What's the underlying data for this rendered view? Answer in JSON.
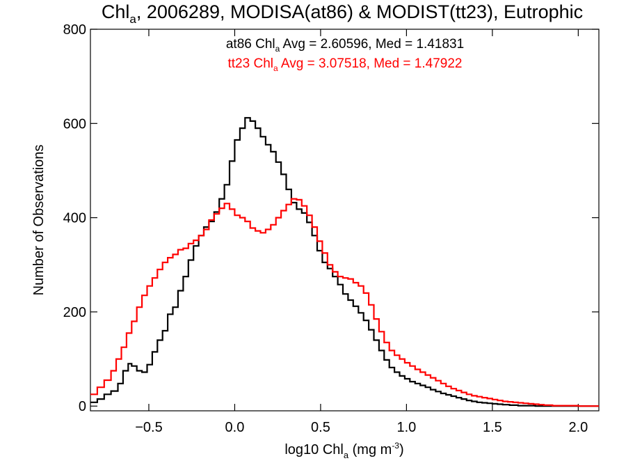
{
  "chart_data": {
    "type": "line",
    "title": {
      "prefix": "Chl",
      "sub": "a",
      "rest": ", 2006289, MODISA(at86) & MODIST(tt23), Eutrophic"
    },
    "xlabel": {
      "prefix": "log10 Chl",
      "sub": "a",
      "mid": " (mg m",
      "sup": "-3",
      "suffix": ")"
    },
    "ylabel": "Number of Observations",
    "xlim": [
      -0.84,
      2.12
    ],
    "ylim": [
      -10,
      800
    ],
    "x_ticks": [
      -0.5,
      0.0,
      0.5,
      1.0,
      1.5,
      2.0
    ],
    "x_tick_labels": [
      "−0.5",
      "0.0",
      "0.5",
      "1.0",
      "1.5",
      "2.0"
    ],
    "y_ticks": [
      0,
      200,
      400,
      600,
      800
    ],
    "y_tick_labels": [
      "0",
      "200",
      "400",
      "600",
      "800"
    ],
    "grid": false,
    "legend": "top-center",
    "annotations": [
      {
        "series": "at86",
        "color": "#000000",
        "prefix": "at86 Chl",
        "sub": "a",
        "rest": " Avg = 2.60596, Med = 1.41831"
      },
      {
        "series": "tt23",
        "color": "#ff0000",
        "prefix": "tt23 Chl",
        "sub": "a",
        "rest": " Avg = 3.07518, Med = 1.47922"
      }
    ],
    "series": [
      {
        "name": "at86",
        "color": "#000000",
        "points": [
          [
            -0.84,
            8
          ],
          [
            -0.8,
            15
          ],
          [
            -0.76,
            25
          ],
          [
            -0.72,
            32
          ],
          [
            -0.68,
            48
          ],
          [
            -0.65,
            75
          ],
          [
            -0.62,
            90
          ],
          [
            -0.6,
            85
          ],
          [
            -0.57,
            75
          ],
          [
            -0.54,
            72
          ],
          [
            -0.51,
            88
          ],
          [
            -0.48,
            115
          ],
          [
            -0.45,
            140
          ],
          [
            -0.42,
            160
          ],
          [
            -0.39,
            195
          ],
          [
            -0.36,
            210
          ],
          [
            -0.33,
            245
          ],
          [
            -0.3,
            275
          ],
          [
            -0.27,
            310
          ],
          [
            -0.24,
            340
          ],
          [
            -0.21,
            362
          ],
          [
            -0.18,
            380
          ],
          [
            -0.15,
            392
          ],
          [
            -0.12,
            412
          ],
          [
            -0.09,
            440
          ],
          [
            -0.06,
            470
          ],
          [
            -0.03,
            520
          ],
          [
            0.0,
            565
          ],
          [
            0.03,
            590
          ],
          [
            0.06,
            612
          ],
          [
            0.09,
            605
          ],
          [
            0.12,
            590
          ],
          [
            0.15,
            572
          ],
          [
            0.18,
            555
          ],
          [
            0.21,
            540
          ],
          [
            0.24,
            518
          ],
          [
            0.27,
            492
          ],
          [
            0.3,
            460
          ],
          [
            0.33,
            432
          ],
          [
            0.36,
            418
          ],
          [
            0.39,
            410
          ],
          [
            0.42,
            390
          ],
          [
            0.45,
            362
          ],
          [
            0.48,
            330
          ],
          [
            0.51,
            305
          ],
          [
            0.54,
            292
          ],
          [
            0.57,
            275
          ],
          [
            0.6,
            258
          ],
          [
            0.63,
            238
          ],
          [
            0.66,
            225
          ],
          [
            0.69,
            212
          ],
          [
            0.72,
            198
          ],
          [
            0.75,
            182
          ],
          [
            0.78,
            162
          ],
          [
            0.81,
            140
          ],
          [
            0.84,
            118
          ],
          [
            0.87,
            98
          ],
          [
            0.9,
            82
          ],
          [
            0.93,
            72
          ],
          [
            0.96,
            64
          ],
          [
            0.99,
            58
          ],
          [
            1.02,
            52
          ],
          [
            1.05,
            48
          ],
          [
            1.08,
            44
          ],
          [
            1.11,
            40
          ],
          [
            1.14,
            35
          ],
          [
            1.17,
            31
          ],
          [
            1.2,
            27
          ],
          [
            1.23,
            24
          ],
          [
            1.26,
            21
          ],
          [
            1.29,
            18
          ],
          [
            1.32,
            15
          ],
          [
            1.35,
            12
          ],
          [
            1.38,
            10
          ],
          [
            1.41,
            8
          ],
          [
            1.44,
            7
          ],
          [
            1.47,
            6
          ],
          [
            1.5,
            5
          ],
          [
            1.53,
            4
          ],
          [
            1.56,
            3
          ],
          [
            1.6,
            2
          ],
          [
            1.65,
            1
          ],
          [
            1.7,
            1
          ],
          [
            1.75,
            0
          ],
          [
            1.8,
            0
          ],
          [
            1.9,
            0
          ],
          [
            2.0,
            0
          ],
          [
            2.12,
            0
          ]
        ]
      },
      {
        "name": "tt23",
        "color": "#ff0000",
        "points": [
          [
            -0.84,
            25
          ],
          [
            -0.8,
            40
          ],
          [
            -0.76,
            55
          ],
          [
            -0.72,
            75
          ],
          [
            -0.69,
            100
          ],
          [
            -0.66,
            125
          ],
          [
            -0.63,
            155
          ],
          [
            -0.6,
            180
          ],
          [
            -0.57,
            210
          ],
          [
            -0.54,
            235
          ],
          [
            -0.51,
            255
          ],
          [
            -0.48,
            272
          ],
          [
            -0.45,
            290
          ],
          [
            -0.42,
            305
          ],
          [
            -0.39,
            315
          ],
          [
            -0.36,
            322
          ],
          [
            -0.33,
            332
          ],
          [
            -0.3,
            335
          ],
          [
            -0.27,
            345
          ],
          [
            -0.24,
            352
          ],
          [
            -0.21,
            362
          ],
          [
            -0.18,
            375
          ],
          [
            -0.15,
            395
          ],
          [
            -0.12,
            408
          ],
          [
            -0.09,
            420
          ],
          [
            -0.06,
            430
          ],
          [
            -0.03,
            418
          ],
          [
            0.0,
            405
          ],
          [
            0.03,
            400
          ],
          [
            0.06,
            392
          ],
          [
            0.09,
            378
          ],
          [
            0.12,
            372
          ],
          [
            0.15,
            368
          ],
          [
            0.18,
            375
          ],
          [
            0.21,
            385
          ],
          [
            0.24,
            400
          ],
          [
            0.27,
            415
          ],
          [
            0.3,
            428
          ],
          [
            0.33,
            440
          ],
          [
            0.36,
            438
          ],
          [
            0.39,
            425
          ],
          [
            0.42,
            405
          ],
          [
            0.45,
            380
          ],
          [
            0.48,
            350
          ],
          [
            0.51,
            325
          ],
          [
            0.54,
            300
          ],
          [
            0.57,
            285
          ],
          [
            0.6,
            275
          ],
          [
            0.63,
            272
          ],
          [
            0.66,
            270
          ],
          [
            0.69,
            262
          ],
          [
            0.72,
            255
          ],
          [
            0.75,
            240
          ],
          [
            0.78,
            215
          ],
          [
            0.81,
            185
          ],
          [
            0.84,
            158
          ],
          [
            0.87,
            135
          ],
          [
            0.9,
            118
          ],
          [
            0.93,
            108
          ],
          [
            0.96,
            100
          ],
          [
            0.99,
            92
          ],
          [
            1.02,
            85
          ],
          [
            1.05,
            78
          ],
          [
            1.08,
            72
          ],
          [
            1.11,
            66
          ],
          [
            1.14,
            60
          ],
          [
            1.17,
            54
          ],
          [
            1.2,
            48
          ],
          [
            1.23,
            42
          ],
          [
            1.26,
            37
          ],
          [
            1.29,
            33
          ],
          [
            1.32,
            29
          ],
          [
            1.35,
            25
          ],
          [
            1.38,
            22
          ],
          [
            1.41,
            20
          ],
          [
            1.44,
            18
          ],
          [
            1.47,
            16
          ],
          [
            1.5,
            14
          ],
          [
            1.53,
            12
          ],
          [
            1.56,
            10
          ],
          [
            1.59,
            9
          ],
          [
            1.62,
            8
          ],
          [
            1.65,
            7
          ],
          [
            1.68,
            6
          ],
          [
            1.71,
            5
          ],
          [
            1.74,
            4
          ],
          [
            1.77,
            3
          ],
          [
            1.8,
            2
          ],
          [
            1.85,
            1
          ],
          [
            1.9,
            1
          ],
          [
            2.0,
            0
          ],
          [
            2.12,
            0
          ]
        ]
      }
    ]
  }
}
